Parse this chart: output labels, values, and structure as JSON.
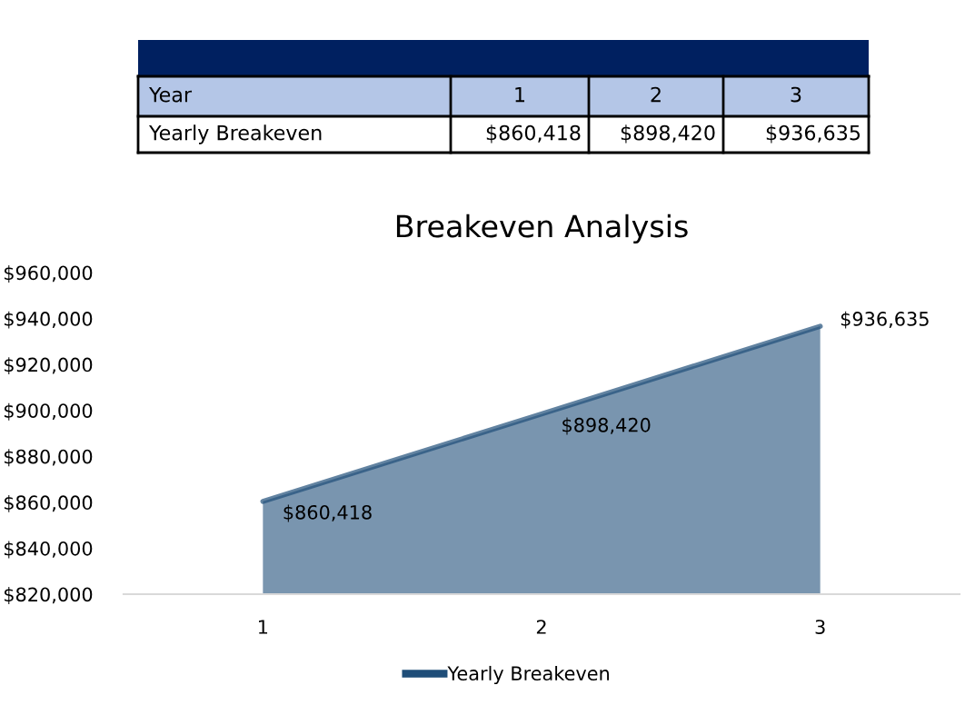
{
  "chart_data": {
    "type": "area",
    "title": "Breakeven Analysis",
    "categories": [
      "1",
      "2",
      "3"
    ],
    "series": [
      {
        "name": "Yearly Breakeven",
        "color": "#1f4e79",
        "values": [
          860418,
          898420,
          936635
        ],
        "value_labels": [
          "$860,418",
          "$898,420",
          "$936,635"
        ]
      }
    ],
    "annotations": [
      "Year"
    ],
    "ylim": [
      820000,
      960000
    ],
    "yticks": [
      {
        "value": 820000,
        "label": "$820,000"
      },
      {
        "value": 840000,
        "label": "$840,000"
      },
      {
        "value": 860000,
        "label": "$860,000"
      },
      {
        "value": 880000,
        "label": "$880,000"
      },
      {
        "value": 900000,
        "label": "$900,000"
      },
      {
        "value": 920000,
        "label": "$920,000"
      },
      {
        "value": 940000,
        "label": "$940,000"
      },
      {
        "value": 960000,
        "label": "$960,000"
      }
    ],
    "grid": false,
    "legend": "bottom",
    "marker": "none"
  }
}
